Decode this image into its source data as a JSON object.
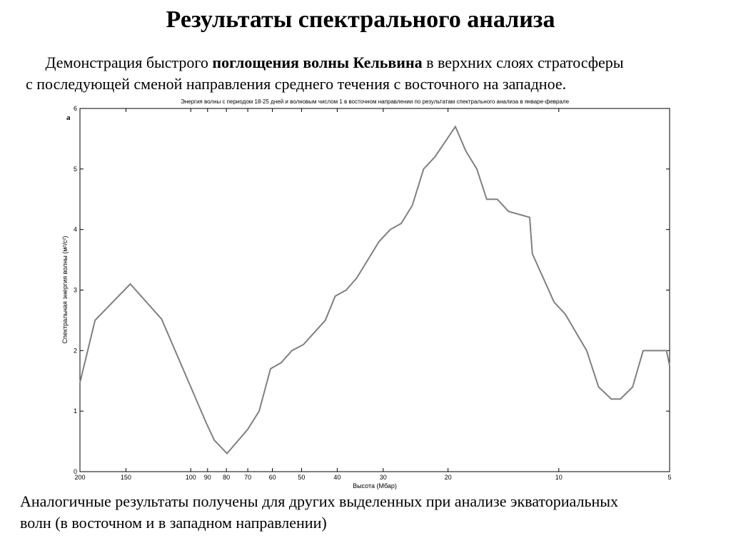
{
  "slide": {
    "title": "Результаты спектрального анализа",
    "intro_line1": [
      "Демонстрация быстрого ",
      "поглощения волны Кельвина",
      " в верхних слоях стратосферы"
    ],
    "intro_line2": "с последующей сменой направления среднего течения с восточного на западное.",
    "footer_line1": "Аналогичные результаты получены для других выделенных при анализе экваториальных",
    "footer_line2": "волн (в восточном и в западном направлении)"
  },
  "chart_data": {
    "type": "line",
    "title": "Энергия волны с периодом 18-25 дней и волновым числом 1 в восточном направлении по результатам спектрального анализа в январе-феврале",
    "annotation": "а",
    "xlabel": "Высота (Мбар)",
    "ylabel": "Спектральная энергия волны (м²/с²)",
    "xscale": "log",
    "xlim": [
      200,
      5
    ],
    "ylim": [
      0,
      6
    ],
    "xticks": [
      200,
      150,
      100,
      90,
      80,
      70,
      60,
      50,
      40,
      30,
      20,
      10,
      5
    ],
    "yticks": [
      0,
      1,
      2,
      3,
      4,
      5,
      6
    ],
    "color": "#808080",
    "x": [
      200,
      182,
      146,
      120,
      90.7,
      86.3,
      79.7,
      70,
      65.2,
      60.7,
      56.8,
      53.1,
      49.4,
      43.1,
      40.5,
      37.8,
      35.4,
      30.8,
      28.7,
      26.8,
      25,
      23.3,
      21.7,
      19.1,
      17.9,
      16.7,
      15.7,
      14.7,
      13.7,
      12,
      11.8,
      10.3,
      9.6,
      8.4,
      7.8,
      7.2,
      6.8,
      6.3,
      5.9,
      5.1,
      5
    ],
    "values": [
      1.47,
      2.5,
      3.1,
      2.52,
      0.8,
      0.52,
      0.3,
      0.7,
      1.0,
      1.7,
      1.8,
      2.0,
      2.1,
      2.5,
      2.9,
      3.0,
      3.2,
      3.8,
      4.0,
      4.1,
      4.4,
      5.0,
      5.2,
      5.7,
      5.3,
      5.0,
      4.5,
      4.5,
      4.3,
      4.2,
      3.6,
      2.8,
      2.6,
      2.0,
      1.4,
      1.2,
      1.2,
      1.4,
      2.0,
      2.0,
      1.75
    ]
  }
}
